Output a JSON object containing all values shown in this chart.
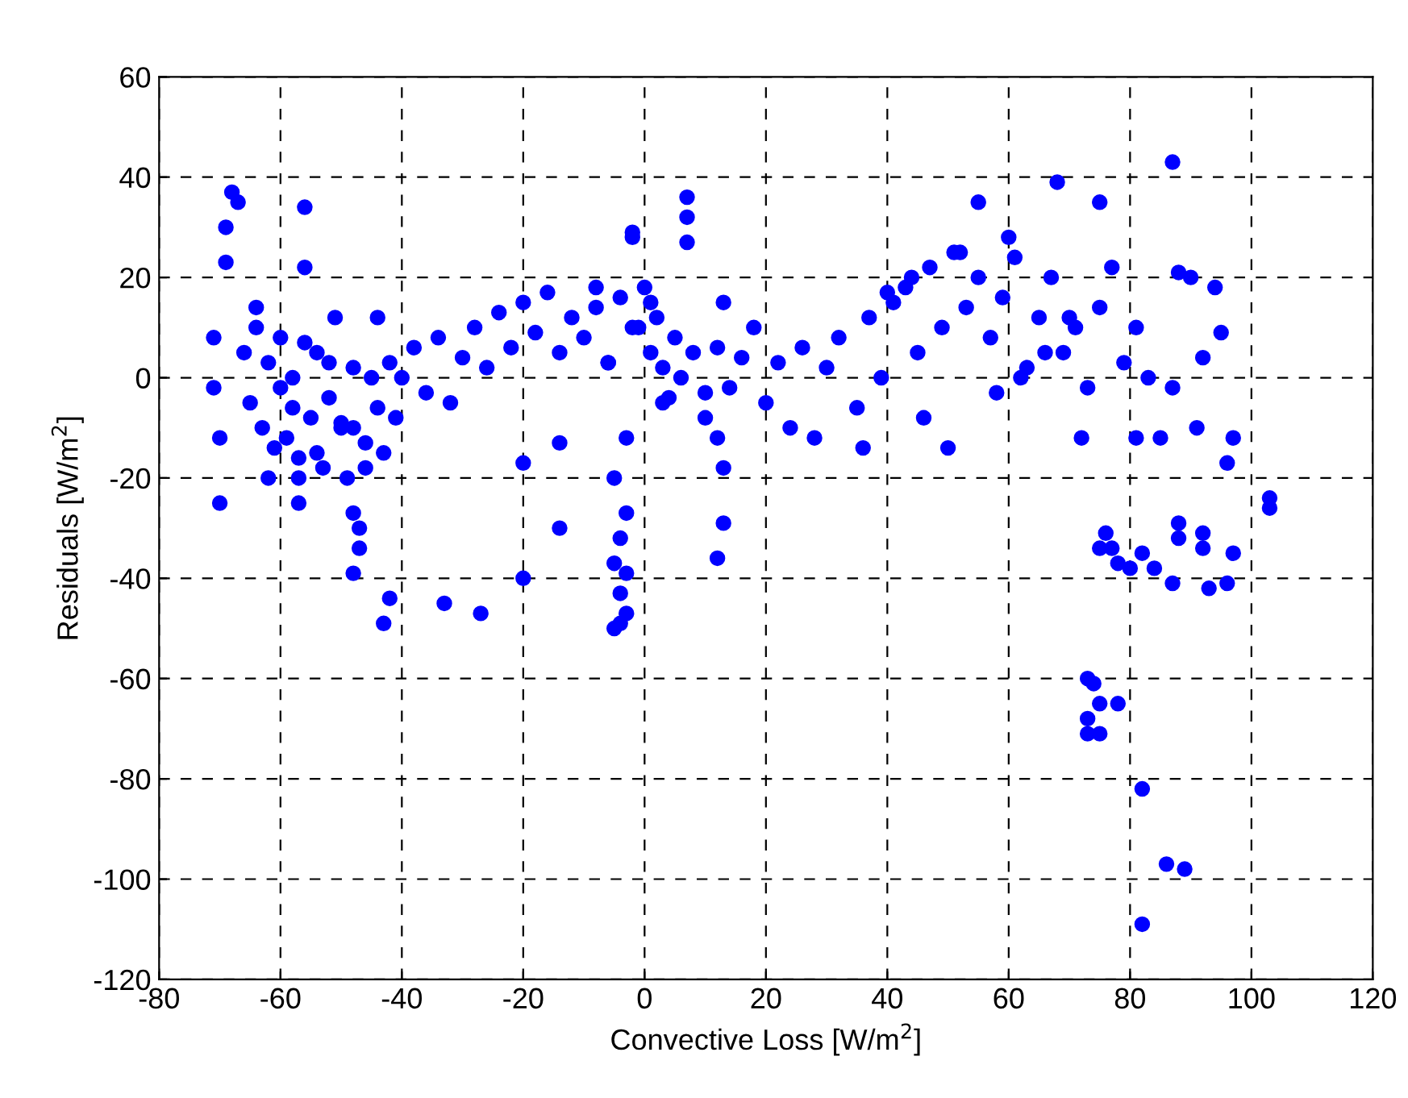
{
  "chart_data": {
    "type": "scatter",
    "xlabel": "Convective Loss [W/m$^{2}$]",
    "ylabel": "Residuals [W/m$^{2}$]",
    "xlim": [
      -80,
      120
    ],
    "ylim": [
      -120,
      60
    ],
    "xticks": [
      {
        "value": -80,
        "label": "-80"
      },
      {
        "value": -60,
        "label": "-60"
      },
      {
        "value": -40,
        "label": "-40"
      },
      {
        "value": -20,
        "label": "-20"
      },
      0,
      20,
      40,
      60,
      80,
      100,
      120
    ],
    "yticks": [
      {
        "value": -120,
        "label": "-120"
      },
      {
        "value": -100,
        "label": "-100"
      },
      {
        "value": -80,
        "label": "-80"
      },
      {
        "value": -60,
        "label": "-60"
      },
      {
        "value": -40,
        "label": "-40"
      },
      {
        "value": -20,
        "label": "-20"
      },
      0,
      20,
      40,
      60
    ],
    "grid": true,
    "marker": "circle",
    "legend": false,
    "series": [
      {
        "color": "#0000ff",
        "x": [
          -70,
          -71,
          -70,
          -71,
          -68,
          -67,
          -69,
          -69,
          -56,
          -56,
          -57,
          -57,
          -48,
          -47,
          -47,
          -48,
          -42,
          -43,
          -33,
          -27,
          -20,
          -20,
          -14,
          -14,
          -5,
          -4,
          -5,
          -4,
          -3,
          -3,
          -4,
          -3,
          -5,
          -3,
          -2,
          -2,
          7,
          7,
          7,
          13,
          12,
          12,
          13,
          13,
          55,
          68,
          75,
          87,
          76,
          75,
          77,
          80,
          78,
          82,
          84,
          88,
          88,
          87,
          92,
          92,
          93,
          97,
          96,
          103,
          103,
          73,
          74,
          75,
          73,
          73,
          75,
          78,
          82,
          86,
          89,
          82,
          96,
          97,
          72,
          81,
          87,
          91,
          94,
          88,
          90,
          95,
          92,
          -66,
          -65,
          -64,
          -63,
          -62,
          -61,
          -60,
          -59,
          -58,
          -57,
          -55,
          -54,
          -53,
          -52,
          -51,
          -50,
          -49,
          -48,
          -46,
          -45,
          -44,
          -43,
          -42,
          -41,
          -40,
          -38,
          -36,
          -34,
          -32,
          -30,
          -28,
          -26,
          -24,
          -22,
          -20,
          -18,
          -16,
          -14,
          -12,
          -10,
          -8,
          -6,
          -4,
          -2,
          0,
          1,
          2,
          3,
          4,
          5,
          6,
          8,
          10,
          12,
          14,
          16,
          18,
          20,
          22,
          24,
          26,
          28,
          30,
          32,
          35,
          37,
          39,
          41,
          43,
          45,
          47,
          49,
          51,
          53,
          55,
          57,
          59,
          61,
          63,
          65,
          67,
          69,
          71,
          73,
          75,
          77,
          79,
          81,
          83,
          85,
          -62,
          -58,
          -54,
          -50,
          -46,
          -44,
          -8,
          -6,
          -1,
          1,
          3,
          46,
          52,
          58,
          60,
          62,
          50,
          44,
          -64,
          -60,
          -56,
          -52,
          -48,
          10,
          36,
          40,
          66,
          70
        ],
        "values": [
          -25,
          8,
          -12,
          -2,
          37,
          35,
          30,
          23,
          34,
          22,
          -20,
          -25,
          -27,
          -30,
          -34,
          -39,
          -44,
          -49,
          -45,
          -47,
          -40,
          -17,
          -30,
          -13,
          -37,
          -43,
          -50,
          -49,
          -47,
          -39,
          -32,
          -27,
          -20,
          -12,
          28,
          29,
          36,
          32,
          27,
          -29,
          -36,
          -12,
          -18,
          15,
          35,
          39,
          35,
          43,
          -31,
          -34,
          -34,
          -38,
          -37,
          -35,
          -38,
          -29,
          -32,
          -41,
          -31,
          -34,
          -42,
          -35,
          -41,
          -24,
          -26,
          -60,
          -61,
          -65,
          -68,
          -71,
          -71,
          -65,
          -82,
          -97,
          -98,
          -109,
          -17,
          -12,
          -12,
          -12,
          -2,
          -10,
          18,
          21,
          20,
          9,
          4,
          5,
          -5,
          10,
          -10,
          3,
          -14,
          8,
          -12,
          0,
          -16,
          -8,
          5,
          -18,
          -4,
          12,
          -10,
          -20,
          2,
          -13,
          0,
          -6,
          -15,
          3,
          -8,
          0,
          6,
          -3,
          8,
          -5,
          4,
          10,
          2,
          13,
          6,
          15,
          9,
          17,
          5,
          12,
          8,
          14,
          3,
          16,
          10,
          18,
          5,
          12,
          2,
          -4,
          8,
          0,
          5,
          -8,
          6,
          -2,
          4,
          10,
          -5,
          3,
          -10,
          6,
          -12,
          2,
          8,
          -6,
          12,
          0,
          15,
          18,
          5,
          22,
          10,
          25,
          14,
          20,
          8,
          16,
          24,
          2,
          12,
          20,
          5,
          10,
          -2,
          14,
          22,
          3,
          10,
          0,
          -12,
          -20,
          -6,
          -15,
          -9,
          -18,
          12,
          18,
          3,
          10,
          15,
          -5,
          -8,
          25,
          -3,
          28,
          0,
          -14,
          20,
          14,
          -2,
          7,
          3,
          -10,
          -3,
          -14,
          17,
          5,
          12
        ]
      }
    ]
  }
}
